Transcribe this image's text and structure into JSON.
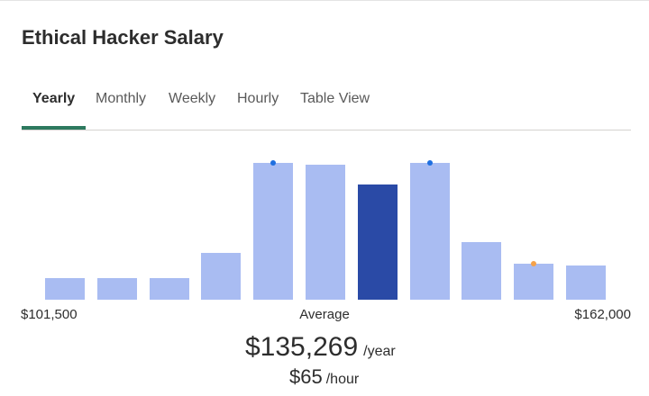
{
  "title": "Ethical Hacker Salary",
  "tabs": [
    {
      "label": "Yearly",
      "active": true
    },
    {
      "label": "Monthly",
      "active": false
    },
    {
      "label": "Weekly",
      "active": false
    },
    {
      "label": "Hourly",
      "active": false
    },
    {
      "label": "Table View",
      "active": false
    }
  ],
  "range": {
    "min": "$101,500",
    "max": "$162,000"
  },
  "average": {
    "label": "Average",
    "yearly_value": "$135,269",
    "yearly_unit": "/year",
    "hourly_value": "$65",
    "hourly_unit": "/hour"
  },
  "colors": {
    "bar": "#a9bcf2",
    "highlight_bar": "#2a4aa6",
    "blue_marker": "#1f6fe0",
    "orange_marker": "#f5a24b",
    "active_tab": "#2d7a5f"
  },
  "chart_data": {
    "type": "bar",
    "x_range": [
      101500,
      162000
    ],
    "relative_heights": [
      0.16,
      0.16,
      0.16,
      0.34,
      1.0,
      0.99,
      0.84,
      1.0,
      0.42,
      0.26,
      0.25
    ],
    "highlight_index": 6,
    "markers": [
      {
        "bar": 4,
        "color": "blue"
      },
      {
        "bar": 7,
        "color": "blue"
      },
      {
        "bar": 9,
        "color": "orange"
      }
    ]
  }
}
